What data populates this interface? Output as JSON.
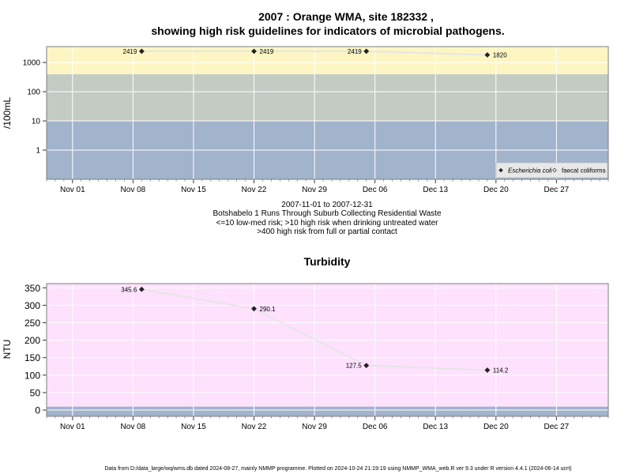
{
  "chart_data": [
    {
      "type": "line",
      "title_line1": "2007 : Orange WMA, site 182332 ,",
      "title_line2": "showing high risk guidelines for indicators of microbial pathogens.",
      "ylabel": "/100mL",
      "yscale": "log",
      "yticks": [
        "1",
        "10",
        "100",
        "1000"
      ],
      "ytick_values": [
        1,
        10,
        100,
        1000
      ],
      "ylim": [
        0.1,
        3500
      ],
      "xlim": [
        "2007-10-29",
        "2008-01-02"
      ],
      "xticks": [
        "Nov 01",
        "Nov 08",
        "Nov 15",
        "Nov 22",
        "Nov 29",
        "Dec 06",
        "Dec 13",
        "Dec 20",
        "Dec 27"
      ],
      "xtick_dates": [
        "2007-11-01",
        "2007-11-08",
        "2007-11-15",
        "2007-11-22",
        "2007-11-29",
        "2007-12-06",
        "2007-12-13",
        "2007-12-20",
        "2007-12-27"
      ],
      "bands": [
        {
          "from": 0.1,
          "to": 10,
          "color": "#a2b3cc"
        },
        {
          "from": 10,
          "to": 400,
          "color": "#c3cbc3"
        },
        {
          "from": 400,
          "to": 3500,
          "color": "#fdf6c3"
        }
      ],
      "series": [
        {
          "name": "Escherichia coli",
          "marker": "filled-diamond",
          "points": [
            {
              "x": "2007-11-09",
              "y": 2419,
              "label": "2419"
            },
            {
              "x": "2007-11-22",
              "y": 2419,
              "label": "2419"
            },
            {
              "x": "2007-12-05",
              "y": 2419,
              "label": "2419"
            },
            {
              "x": "2007-12-19",
              "y": 1820,
              "label": "1820"
            }
          ]
        }
      ],
      "legend": {
        "position": "bottom-right",
        "items": [
          {
            "label": "Escherichia coli",
            "marker": "filled-diamond"
          },
          {
            "label": "faecal coliforms",
            "marker": "open-diamond"
          }
        ]
      },
      "subtitle_lines": [
        "2007-11-01 to 2007-12-31",
        "Botshabelo 1 Runs Through Suburb Collecting Residential Waste",
        "<=10 low-med risk; >10 high risk when drinking untreated water",
        ">400 high risk from full or partial contact"
      ]
    },
    {
      "type": "line",
      "title": "Turbidity",
      "ylabel": "NTU",
      "yticks": [
        "0",
        "50",
        "100",
        "150",
        "200",
        "250",
        "300",
        "350"
      ],
      "ytick_values": [
        0,
        50,
        100,
        150,
        200,
        250,
        300,
        350
      ],
      "ylim": [
        -18,
        362
      ],
      "xlim": [
        "2007-10-29",
        "2008-01-02"
      ],
      "xticks": [
        "Nov 01",
        "Nov 08",
        "Nov 15",
        "Nov 22",
        "Nov 29",
        "Dec 06",
        "Dec 13",
        "Dec 20",
        "Dec 27"
      ],
      "xtick_dates": [
        "2007-11-01",
        "2007-11-08",
        "2007-11-15",
        "2007-11-22",
        "2007-11-29",
        "2007-12-06",
        "2007-12-13",
        "2007-12-20",
        "2007-12-27"
      ],
      "bands": [
        {
          "from": -18,
          "to": 10,
          "color": "#a2b3cc"
        },
        {
          "from": 10,
          "to": 362,
          "color": "#fde1fd"
        }
      ],
      "series": [
        {
          "name": "",
          "marker": "filled-diamond",
          "points": [
            {
              "x": "2007-11-09",
              "y": 345.6,
              "label": "345.6"
            },
            {
              "x": "2007-11-22",
              "y": 290.1,
              "label": "290.1"
            },
            {
              "x": "2007-12-05",
              "y": 127.5,
              "label": "127.5"
            },
            {
              "x": "2007-12-19",
              "y": 114.2,
              "label": "114.2"
            }
          ]
        }
      ]
    }
  ],
  "footer": "Data from D:/data_large/wq/wms.db dated 2024-08-27, mainly NMMP programme. Plotted on 2024-10-24 21:19:19 using NMMP_WMA_web.R ver 9.3 under R version 4.4.1 (2024-06-14 ucrt)"
}
